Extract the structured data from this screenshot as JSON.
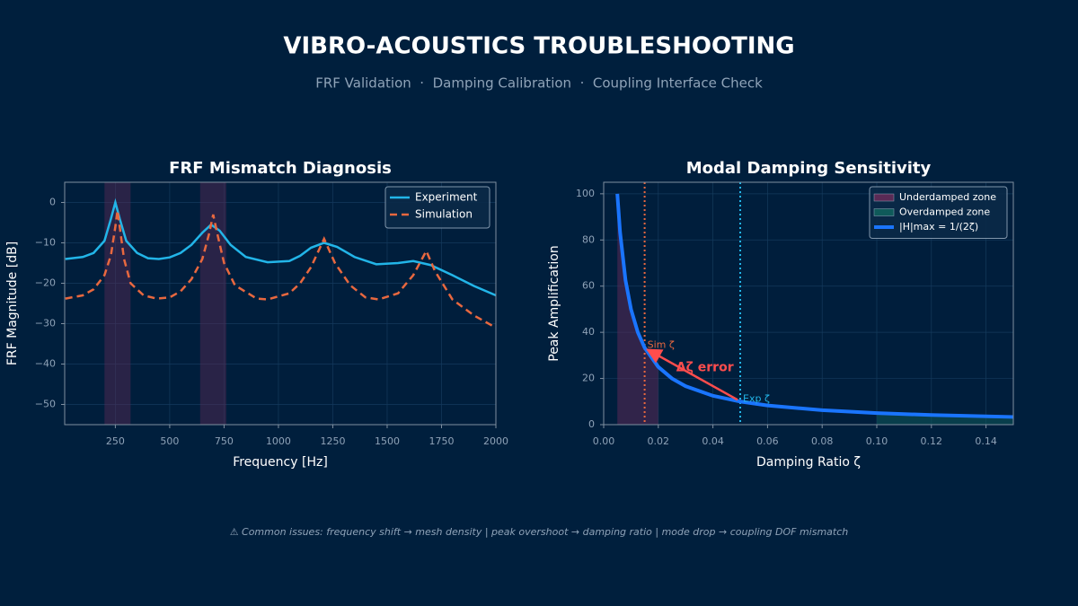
{
  "header": {
    "title": "VIBRO-ACOUSTICS TROUBLESHOOTING",
    "subtitle": "FRF Validation  ·  Damping Calibration  ·  Coupling Interface Check"
  },
  "chart_data": [
    {
      "type": "line",
      "title": "FRF Mismatch Diagnosis",
      "xlabel": "Frequency [Hz]",
      "ylabel": "FRF Magnitude [dB]",
      "xlim": [
        17,
        2000
      ],
      "ylim": [
        -55,
        5
      ],
      "xticks": [
        250,
        500,
        750,
        1000,
        1250,
        1500,
        1750,
        2000
      ],
      "yticks": [
        {
          "value": -50,
          "label": "−50"
        },
        {
          "value": -40,
          "label": "−40"
        },
        {
          "value": -30,
          "label": "−30"
        },
        {
          "value": -20,
          "label": "−20"
        },
        {
          "value": -10,
          "label": "−10"
        },
        0
      ],
      "grid": true,
      "legend": "upper right",
      "bands": [
        [
          200,
          320
        ],
        [
          640,
          760
        ]
      ],
      "band_color": "#5a2a55",
      "series": [
        {
          "name": "Experiment",
          "color": "#22b5e8",
          "style": "solid",
          "x": [
            20,
            100,
            150,
            200,
            230,
            250,
            270,
            300,
            350,
            400,
            450,
            500,
            550,
            600,
            650,
            690,
            730,
            780,
            850,
            950,
            1050,
            1100,
            1150,
            1210,
            1270,
            1350,
            1450,
            1550,
            1620,
            1700,
            1800,
            1900,
            2000
          ],
          "values": [
            -14,
            -13.5,
            -12.5,
            -9.5,
            -4,
            0,
            -4,
            -9.5,
            -12.5,
            -13.8,
            -14,
            -13.6,
            -12.5,
            -10.5,
            -7.5,
            -5.5,
            -7,
            -10.5,
            -13.5,
            -14.8,
            -14.5,
            -13.2,
            -11.2,
            -10,
            -11,
            -13.5,
            -15.3,
            -15,
            -14.5,
            -15.5,
            -18,
            -20.7,
            -23
          ]
        },
        {
          "name": "Simulation",
          "color": "#e8683f",
          "style": "dashed",
          "x": [
            20,
            100,
            150,
            200,
            230,
            250,
            260,
            270,
            290,
            320,
            380,
            440,
            500,
            550,
            600,
            650,
            680,
            700,
            720,
            750,
            800,
            900,
            950,
            1050,
            1100,
            1150,
            1210,
            1260,
            1330,
            1400,
            1460,
            1550,
            1620,
            1680,
            1720,
            1800,
            1900,
            2000
          ],
          "values": [
            -23.8,
            -23,
            -21.5,
            -18,
            -13,
            -6,
            -2,
            -6,
            -14,
            -20,
            -23,
            -23.8,
            -23.5,
            -22,
            -19,
            -14,
            -8,
            -3,
            -8,
            -15,
            -20.5,
            -23.8,
            -24,
            -22.5,
            -20,
            -16,
            -9,
            -15,
            -20.5,
            -23.5,
            -24,
            -22.5,
            -18,
            -12,
            -17,
            -24,
            -28,
            -31
          ]
        }
      ]
    },
    {
      "type": "line",
      "title": "Modal Damping Sensitivity",
      "xlabel": "Damping Ratio ζ",
      "ylabel": "Peak Amplification",
      "xlim": [
        0,
        0.15
      ],
      "ylim": [
        0,
        105
      ],
      "xticks": [
        {
          "value": 0,
          "label": "0.00"
        },
        0.02,
        0.04,
        0.06,
        0.08,
        {
          "value": 0.1,
          "label": "0.10"
        },
        0.12,
        0.14
      ],
      "yticks": [
        0,
        20,
        40,
        60,
        80,
        100
      ],
      "grid": true,
      "legend": "upper right",
      "zones": [
        {
          "name": "Underdamped zone",
          "color": "#5a2a55",
          "range": [
            0.005,
            0.02
          ]
        },
        {
          "name": "Overdamped zone",
          "color": "#0f5a5a",
          "range": [
            0.1,
            0.15
          ]
        }
      ],
      "series": [
        {
          "name": "|H|max = 1/(2ζ)",
          "color": "#1a75ff",
          "style": "thick",
          "x": [
            0.005,
            0.006,
            0.008,
            0.01,
            0.0125,
            0.015,
            0.02,
            0.025,
            0.03,
            0.04,
            0.05,
            0.06,
            0.08,
            0.1,
            0.12,
            0.15
          ],
          "values": [
            100,
            83.33,
            62.5,
            50,
            40,
            33.33,
            25,
            20,
            16.67,
            12.5,
            10,
            8.33,
            6.25,
            5,
            4.17,
            3.33
          ]
        }
      ],
      "vlines": [
        {
          "x": 0.015,
          "label": "Sim ζ",
          "color": "#e8683f"
        },
        {
          "x": 0.05,
          "label": "Exp ζ",
          "color": "#22b5e8"
        }
      ],
      "delta_label": "Δζ error",
      "delta_color": "#ff4d4d"
    }
  ],
  "footnote": "⚠ Common issues: frequency shift → mesh density | peak overshoot → damping ratio | mode drop → coupling DOF mismatch"
}
